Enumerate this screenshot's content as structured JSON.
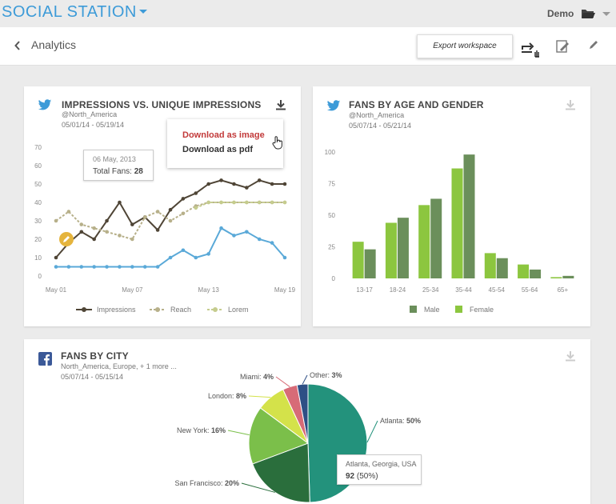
{
  "app": {
    "brand": "SOCIAL STATION",
    "user": "Demo"
  },
  "header": {
    "title": "Analytics",
    "export_label": "Export workspace"
  },
  "card1": {
    "title": "IMPRESSIONS VS. UNIQUE IMPRESSIONS",
    "account": "@North_America",
    "dates": "05/01/14 - 05/19/14",
    "menu": {
      "image": "Download as image",
      "pdf": "Download as pdf"
    },
    "tooltip": {
      "date": "06 May, 2013",
      "label": "Total Fans:",
      "value": "28"
    }
  },
  "card2": {
    "title": "FANS BY AGE AND GENDER",
    "account": "@North_America",
    "dates": "05/07/14 - 05/21/14"
  },
  "card3": {
    "title": "FANS BY CITY",
    "account": "North_America, Europe, + 1 more ...",
    "dates": "05/07/14 - 05/15/14",
    "tooltip": {
      "location": "Atlanta, Georgia, USA",
      "value": "92",
      "pct": "(50%)"
    }
  },
  "colors": {
    "brand": "#3d9bd8",
    "impressions": "#4f4536",
    "reach": "#b7b08a",
    "lorem": "#c5cc8e",
    "blue_series": "#5aa9d8",
    "male": "#6b8f5b",
    "female": "#8cc63f",
    "alert": "#c23a3a"
  },
  "chart_data": [
    {
      "type": "line",
      "x": [
        "May 01",
        "May 02",
        "May 03",
        "May 04",
        "May 05",
        "May 06",
        "May 07",
        "May 08",
        "May 09",
        "May 10",
        "May 11",
        "May 12",
        "May 13",
        "May 14",
        "May 15",
        "May 16",
        "May 17",
        "May 18",
        "May 19"
      ],
      "xticks": [
        "May 01",
        "May 07",
        "May 13",
        "May 19"
      ],
      "ylim": [
        0,
        70
      ],
      "yticks": [
        0,
        10,
        20,
        30,
        40,
        50,
        60,
        70
      ],
      "series": [
        {
          "name": "Impressions",
          "color": "#4f4536",
          "values": [
            10,
            18,
            24,
            20,
            30,
            40,
            28,
            32,
            25,
            36,
            42,
            45,
            50,
            52,
            50,
            48,
            52,
            50,
            50
          ]
        },
        {
          "name": "Reach",
          "color": "#b7b08a",
          "values": [
            30,
            35,
            28,
            26,
            24,
            22,
            20,
            32,
            35,
            30,
            34,
            38,
            40,
            40,
            40,
            40,
            40,
            40,
            40
          ]
        },
        {
          "name": "Lorem",
          "color": "#c5cc8e",
          "values": [
            null,
            null,
            null,
            null,
            null,
            null,
            null,
            null,
            null,
            null,
            null,
            37,
            40,
            40,
            40,
            40,
            40,
            40,
            40
          ]
        },
        {
          "name": "",
          "color": "#5aa9d8",
          "values": [
            5,
            5,
            5,
            5,
            5,
            5,
            5,
            5,
            5,
            10,
            14,
            10,
            12,
            26,
            22,
            24,
            20,
            18,
            10
          ]
        }
      ]
    },
    {
      "type": "bar",
      "categories": [
        "13-17",
        "18-24",
        "25-34",
        "35-44",
        "45-54",
        "55-64",
        "65+"
      ],
      "ylim": [
        0,
        100
      ],
      "yticks": [
        0,
        25,
        50,
        75,
        100
      ],
      "series": [
        {
          "name": "Female",
          "color": "#8cc63f",
          "values": [
            29,
            44,
            58,
            87,
            20,
            11,
            1
          ]
        },
        {
          "name": "Male",
          "color": "#6b8f5b",
          "values": [
            23,
            48,
            63,
            98,
            16,
            7,
            2
          ]
        }
      ],
      "legend": [
        "Male",
        "Female"
      ]
    },
    {
      "type": "pie",
      "slices": [
        {
          "label": "Atlanta:",
          "pct": "50%",
          "value": 50,
          "color": "#23927c"
        },
        {
          "label": "San Francisco:",
          "pct": "20%",
          "value": 20,
          "color": "#2a6e3c"
        },
        {
          "label": "New York:",
          "pct": "16%",
          "value": 16,
          "color": "#7bbf4a"
        },
        {
          "label": "London:",
          "pct": "8%",
          "value": 8,
          "color": "#d4e24a"
        },
        {
          "label": "Miami:",
          "pct": "4%",
          "value": 4,
          "color": "#d76b77"
        },
        {
          "label": "Other:",
          "pct": "3%",
          "value": 3,
          "color": "#2e4f85"
        }
      ]
    }
  ]
}
